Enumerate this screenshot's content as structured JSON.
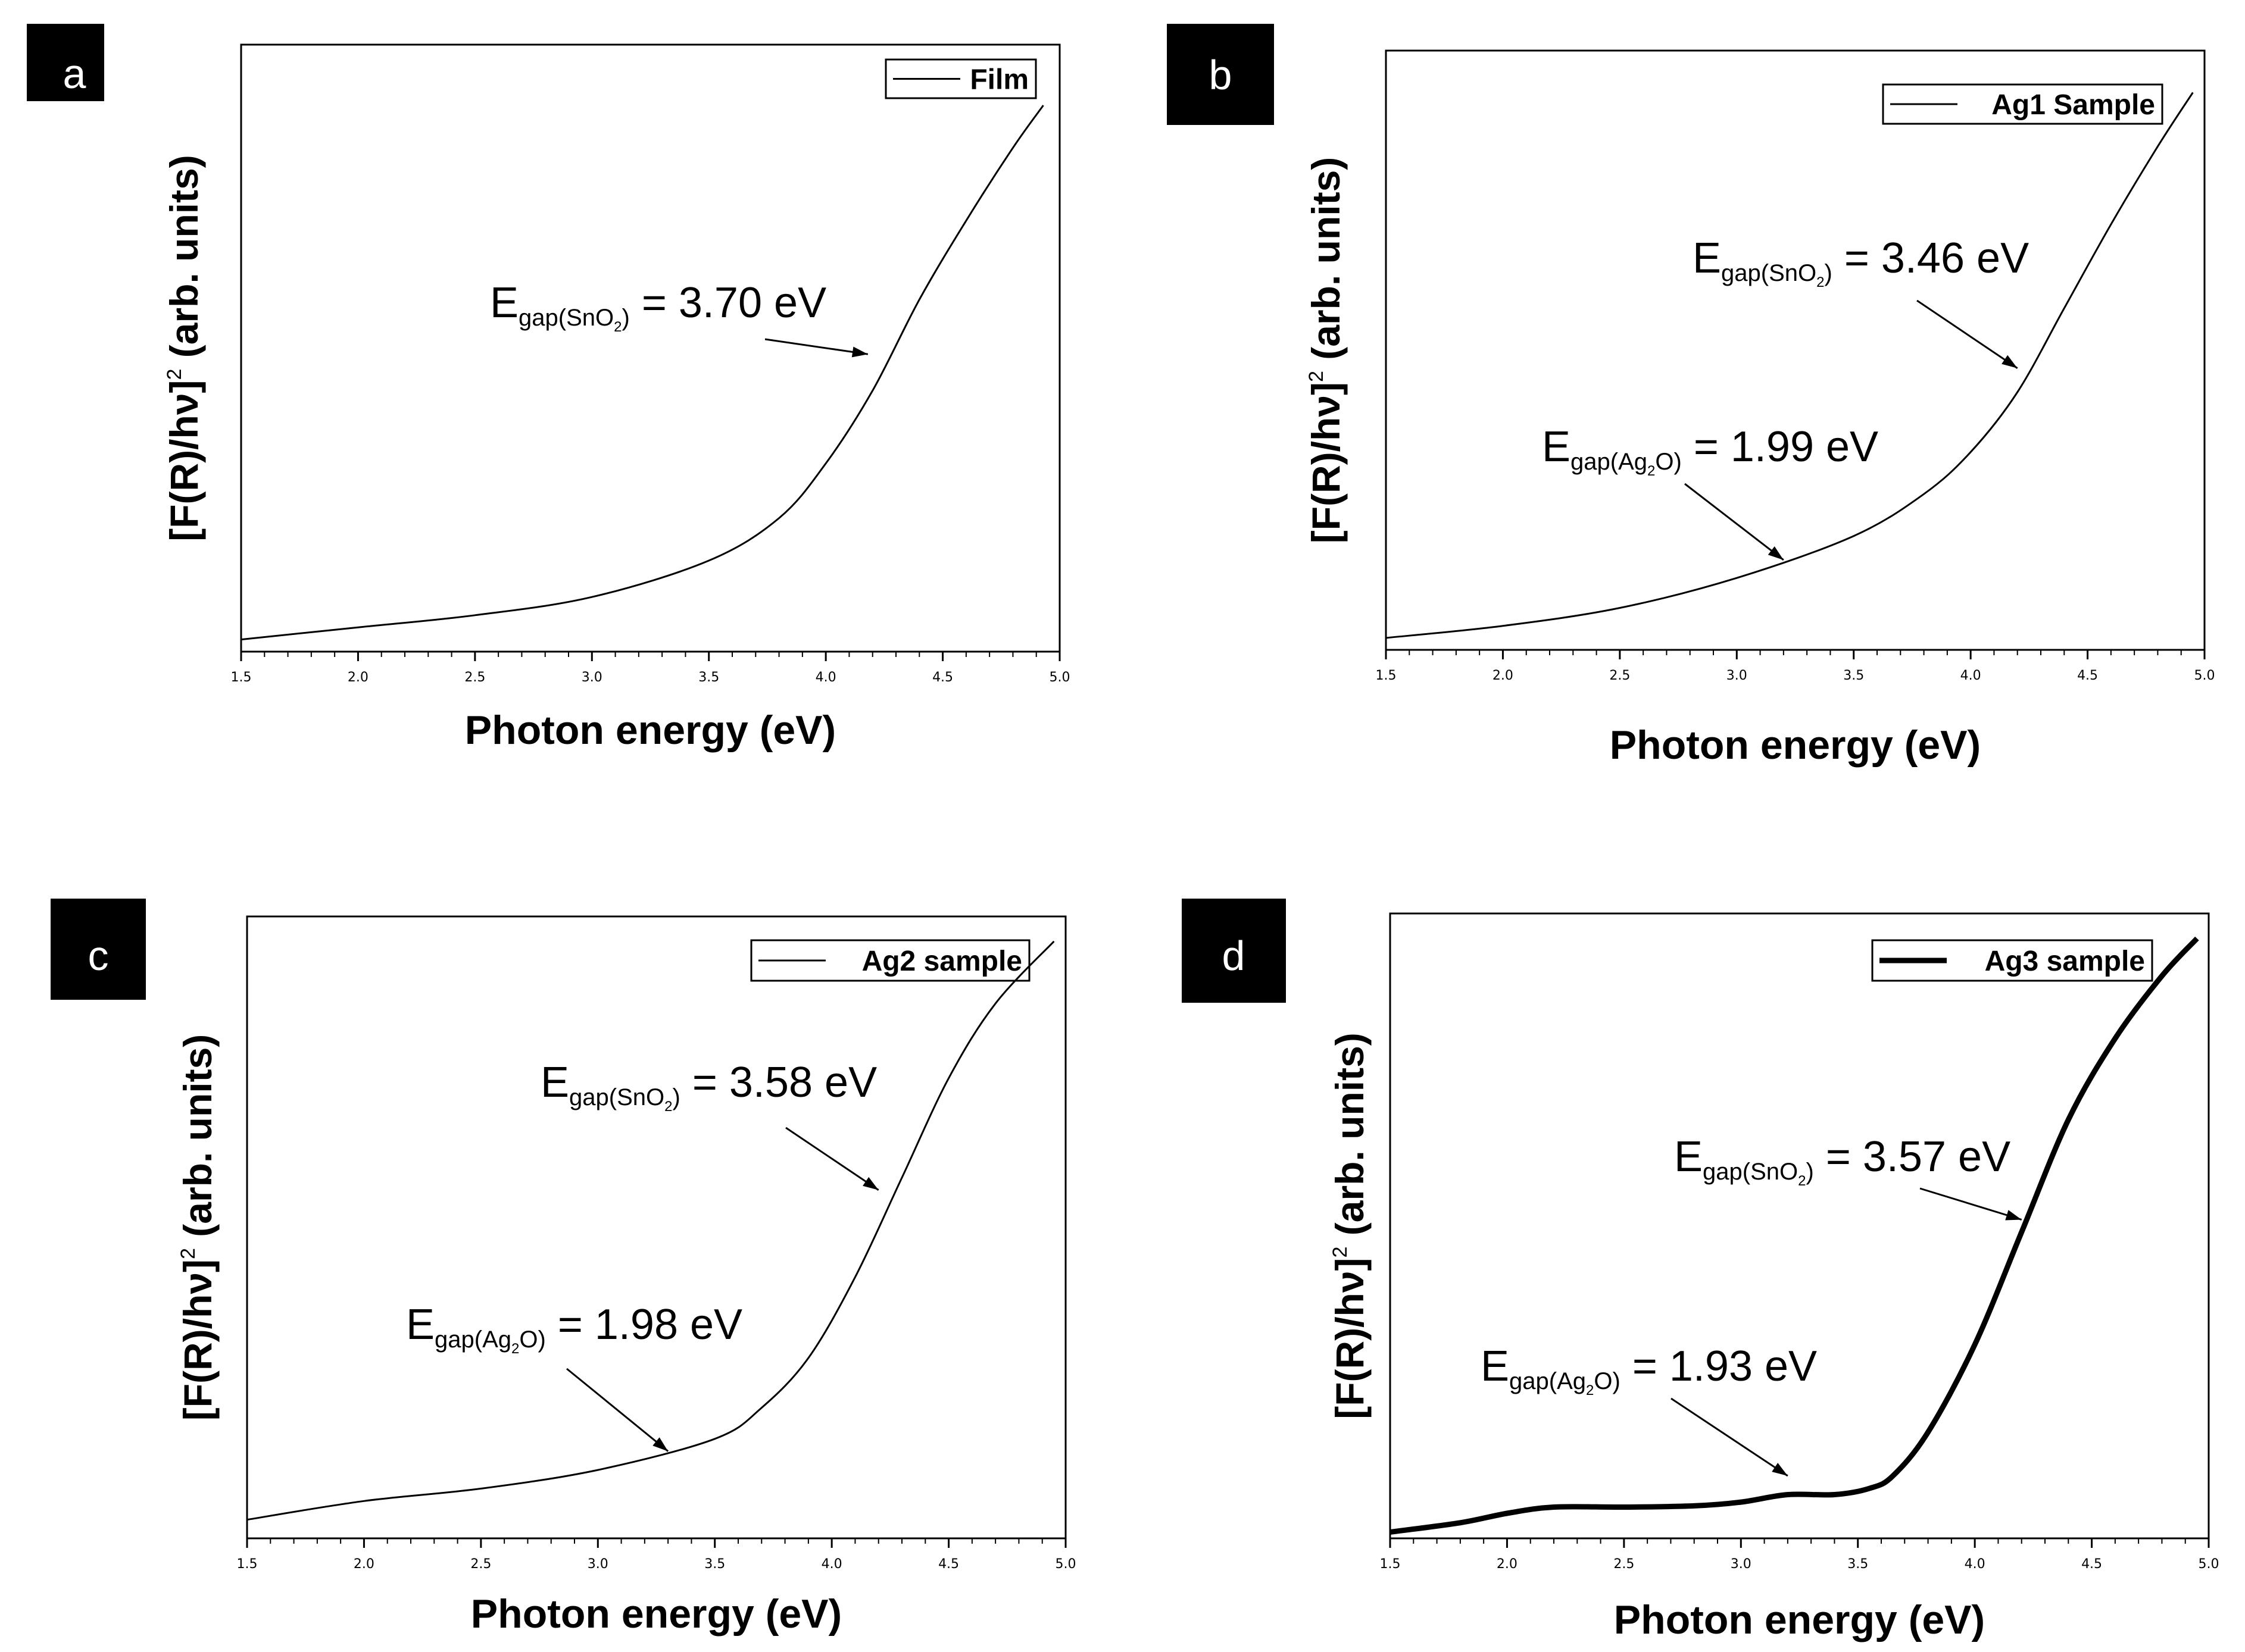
{
  "chart_data": [
    {
      "type": "line",
      "panel_label": "a",
      "title": "",
      "xlabel": "Photon energy (eV)",
      "ylabel": {
        "main": "[F(R)/hν]",
        "sup": "2",
        "rest": " (arb. units)"
      },
      "xlim": [
        1.5,
        5.0
      ],
      "ylim": [
        0,
        1
      ],
      "xticks": [
        "1.5",
        "2.0",
        "2.5",
        "3.0",
        "3.5",
        "4.0",
        "4.5",
        "5.0"
      ],
      "grid": false,
      "legend": {
        "label": "Film",
        "position": "top-right",
        "line_style": "thin"
      },
      "series": [
        {
          "name": "Film",
          "x": [
            1.5,
            2.0,
            2.5,
            3.0,
            3.5,
            3.8,
            4.0,
            4.2,
            4.4,
            4.6,
            4.8,
            4.93
          ],
          "y": [
            0.02,
            0.04,
            0.06,
            0.09,
            0.15,
            0.22,
            0.31,
            0.43,
            0.58,
            0.71,
            0.83,
            0.9
          ]
        }
      ],
      "annotations": [
        {
          "main": "E",
          "sub": "gap(SnO",
          "subsub": "2",
          "close": ")",
          "value": " = 3.70 eV",
          "arrow_to": [
            4.18,
            0.49
          ]
        }
      ]
    },
    {
      "type": "line",
      "panel_label": "b",
      "title": "",
      "xlabel": "Photon energy (eV)",
      "ylabel": {
        "main": "[F(R)/hν]",
        "sup": "2",
        "rest": " (arb. units)"
      },
      "xlim": [
        1.5,
        5.0
      ],
      "ylim": [
        0,
        1
      ],
      "xticks": [
        "1.5",
        "2.0",
        "2.5",
        "3.0",
        "3.5",
        "4.0",
        "4.5",
        "5.0"
      ],
      "grid": false,
      "legend": {
        "label": "Ag1 Sample",
        "position": "top-right",
        "line_style": "thin"
      },
      "series": [
        {
          "name": "Ag1 Sample",
          "x": [
            1.5,
            2.0,
            2.5,
            3.0,
            3.5,
            3.8,
            4.0,
            4.2,
            4.4,
            4.6,
            4.8,
            4.95
          ],
          "y": [
            0.02,
            0.04,
            0.07,
            0.12,
            0.19,
            0.26,
            0.33,
            0.43,
            0.57,
            0.71,
            0.84,
            0.93
          ]
        }
      ],
      "annotations": [
        {
          "main": "E",
          "sub": "gap(SnO",
          "subsub": "2",
          "close": ")",
          "value": " = 3.46 eV",
          "arrow_to": [
            4.2,
            0.47
          ]
        },
        {
          "main": "E",
          "sub": "gap(Ag",
          "subsub": "2",
          "close": "O)",
          "value": " = 1.99 eV",
          "arrow_to": [
            3.2,
            0.15
          ]
        }
      ]
    },
    {
      "type": "line",
      "panel_label": "c",
      "title": "",
      "xlabel": "Photon energy (eV)",
      "ylabel": {
        "main": "[F(R)/hν]",
        "sup": "2",
        "rest": " (arb. units)"
      },
      "xlim": [
        1.5,
        5.0
      ],
      "ylim": [
        0,
        1
      ],
      "xticks": [
        "1.5",
        "2.0",
        "2.5",
        "3.0",
        "3.5",
        "4.0",
        "4.5",
        "5.0"
      ],
      "grid": false,
      "legend": {
        "label": "Ag2 sample",
        "position": "top-right",
        "line_style": "thin"
      },
      "series": [
        {
          "name": "Ag2 sample",
          "x": [
            1.5,
            2.0,
            2.5,
            3.0,
            3.5,
            3.7,
            3.9,
            4.1,
            4.3,
            4.5,
            4.7,
            4.95
          ],
          "y": [
            0.03,
            0.06,
            0.08,
            0.11,
            0.16,
            0.21,
            0.29,
            0.42,
            0.58,
            0.74,
            0.86,
            0.96
          ]
        }
      ],
      "annotations": [
        {
          "main": "E",
          "sub": "gap(SnO",
          "subsub": "2",
          "close": ")",
          "value": " = 3.58 eV",
          "arrow_to": [
            4.2,
            0.56
          ]
        },
        {
          "main": "E",
          "sub": "gap(Ag",
          "subsub": "2",
          "close": "O)",
          "value": " = 1.98 eV",
          "arrow_to": [
            3.3,
            0.14
          ]
        }
      ]
    },
    {
      "type": "line",
      "panel_label": "d",
      "title": "",
      "xlabel": "Photon energy (eV)",
      "ylabel": {
        "main": "[F(R)/hν]",
        "sup": "2",
        "rest": " (arb. units)"
      },
      "xlim": [
        1.5,
        5.0
      ],
      "ylim": [
        0,
        1
      ],
      "xticks": [
        "1.5",
        "2.0",
        "2.5",
        "3.0",
        "3.5",
        "4.0",
        "4.5",
        "5.0"
      ],
      "grid": false,
      "legend": {
        "label": "Ag3 sample",
        "position": "top-right",
        "line_style": "thick"
      },
      "series": [
        {
          "name": "Ag3 sample",
          "x": [
            1.5,
            1.8,
            2.0,
            2.2,
            2.5,
            2.8,
            3.0,
            3.2,
            3.4,
            3.55,
            3.65,
            3.8,
            4.0,
            4.2,
            4.4,
            4.6,
            4.8,
            4.95
          ],
          "y": [
            0.01,
            0.025,
            0.04,
            0.05,
            0.05,
            0.052,
            0.058,
            0.07,
            0.07,
            0.08,
            0.1,
            0.17,
            0.31,
            0.49,
            0.67,
            0.8,
            0.9,
            0.96
          ]
        }
      ],
      "annotations": [
        {
          "main": "E",
          "sub": "gap(SnO",
          "subsub": "2",
          "close": ")",
          "value": " = 3.57 eV",
          "arrow_to": [
            4.2,
            0.51
          ]
        },
        {
          "main": "E",
          "sub": "gap(Ag",
          "subsub": "2",
          "close": "O)",
          "value": " = 1.93 eV",
          "arrow_to": [
            3.2,
            0.1
          ]
        }
      ]
    }
  ]
}
